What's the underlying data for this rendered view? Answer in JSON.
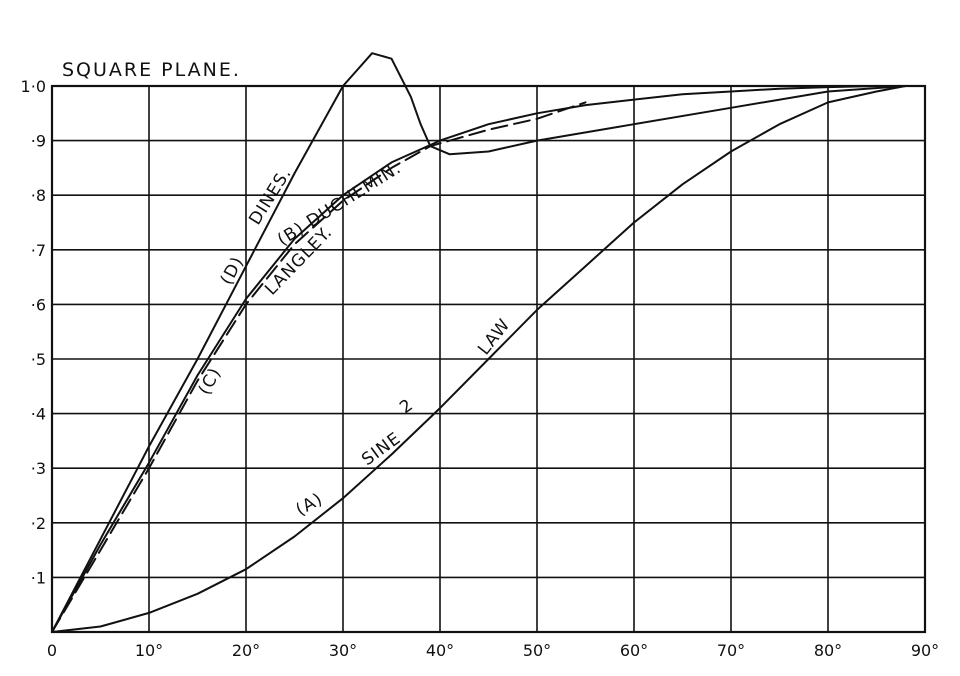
{
  "chart_data": {
    "type": "line",
    "title": "SQUARE PLANE.",
    "xlabel": "",
    "ylabel": "",
    "xlim": [
      0,
      90
    ],
    "ylim": [
      0,
      1.0
    ],
    "grid": true,
    "x_tick_labels": [
      "0",
      "10°",
      "20°",
      "30°",
      "40°",
      "50°",
      "60°",
      "70°",
      "80°",
      "90°"
    ],
    "y_tick_labels": [
      "·1",
      "·2",
      "·3",
      "·4",
      "·5",
      "·6",
      "·7",
      "·8",
      "·9",
      "1·0"
    ],
    "series": [
      {
        "name": "(A) SINE² LAW",
        "style": "solid",
        "x": [
          0,
          5,
          10,
          15,
          20,
          25,
          30,
          35,
          40,
          45,
          50,
          55,
          60,
          65,
          70,
          75,
          80,
          85,
          88
        ],
        "y": [
          0,
          0.01,
          0.035,
          0.07,
          0.115,
          0.175,
          0.245,
          0.325,
          0.41,
          0.5,
          0.59,
          0.67,
          0.75,
          0.82,
          0.88,
          0.93,
          0.97,
          0.99,
          1.0
        ]
      },
      {
        "name": "(B) DUCHEMIN.",
        "style": "solid",
        "x": [
          0,
          5,
          10,
          15,
          20,
          25,
          30,
          35,
          40,
          45,
          50,
          55,
          60,
          65,
          70,
          75,
          80,
          85,
          88
        ],
        "y": [
          0,
          0.16,
          0.31,
          0.47,
          0.61,
          0.72,
          0.8,
          0.86,
          0.9,
          0.93,
          0.95,
          0.965,
          0.975,
          0.985,
          0.99,
          0.995,
          0.998,
          1.0,
          1.0
        ]
      },
      {
        "name": "(C) LANGLEY.",
        "style": "dashed",
        "x": [
          0,
          5,
          10,
          15,
          20,
          25,
          30,
          35,
          39,
          45,
          50,
          55
        ],
        "y": [
          0,
          0.15,
          0.3,
          0.46,
          0.6,
          0.71,
          0.79,
          0.85,
          0.89,
          0.92,
          0.94,
          0.97
        ]
      },
      {
        "name": "(D) DINES.",
        "style": "solid",
        "x": [
          0,
          5,
          10,
          15,
          20,
          25,
          30,
          33,
          35,
          37,
          38,
          39,
          41,
          45,
          50,
          60,
          70,
          80,
          88
        ],
        "y": [
          0,
          0.17,
          0.34,
          0.5,
          0.67,
          0.84,
          1.0,
          1.06,
          1.05,
          0.98,
          0.93,
          0.89,
          0.875,
          0.88,
          0.9,
          0.93,
          0.96,
          0.99,
          1.0
        ]
      }
    ],
    "annotations": [
      "(A)",
      "SINE",
      "2",
      "LAW",
      "(B) DUCHEMIN.",
      "(C)",
      "LANGLEY.",
      "(D)",
      "DINES."
    ]
  }
}
